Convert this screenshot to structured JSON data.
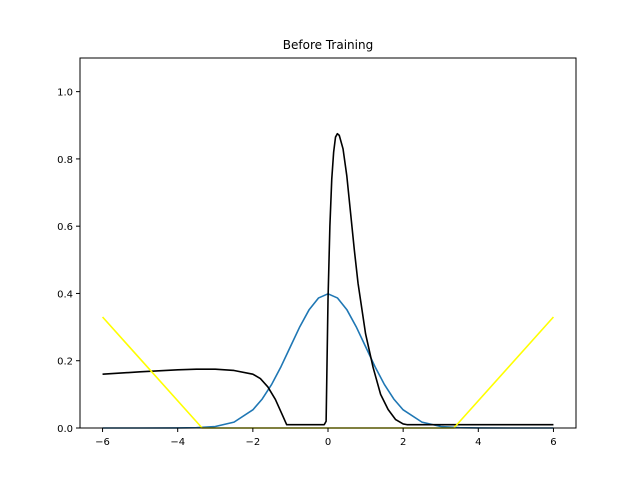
{
  "chart_data": {
    "type": "line",
    "title": "Before Training",
    "xlabel": "",
    "ylabel": "",
    "xlim": [
      -6.6,
      6.6
    ],
    "ylim": [
      0,
      1.1
    ],
    "xticks": [
      -6,
      -4,
      -2,
      0,
      2,
      4,
      6
    ],
    "xtick_labels": [
      "−6",
      "−4",
      "−2",
      "0",
      "2",
      "4",
      "6"
    ],
    "yticks": [
      0.0,
      0.2,
      0.4,
      0.6,
      0.8,
      1.0
    ],
    "ytick_labels": [
      "0.0",
      "0.2",
      "0.4",
      "0.6",
      "0.8",
      "1.0"
    ],
    "grid": false,
    "legend": "none",
    "series": [
      {
        "color": "#1f77b4",
        "x": [
          -6,
          -5,
          -4,
          -3.5,
          -3,
          -2.5,
          -2,
          -1.75,
          -1.5,
          -1.25,
          -1,
          -0.75,
          -0.5,
          -0.25,
          0,
          0.25,
          0.5,
          0.75,
          1,
          1.25,
          1.5,
          1.75,
          2,
          2.5,
          3,
          3.5,
          4,
          5,
          6
        ],
        "y": [
          0,
          0,
          0.0001,
          0.0009,
          0.0044,
          0.0175,
          0.054,
          0.0863,
          0.1295,
          0.1826,
          0.242,
          0.3011,
          0.3521,
          0.3867,
          0.3989,
          0.3867,
          0.3521,
          0.3011,
          0.242,
          0.1826,
          0.1295,
          0.0863,
          0.054,
          0.0175,
          0.0044,
          0.0009,
          0.0001,
          0,
          0
        ]
      },
      {
        "color": "#000000",
        "x": [
          -6,
          -5,
          -4,
          -3.5,
          -3,
          -2.5,
          -2,
          -1.8,
          -1.6,
          -1.4,
          -1.2,
          -1.1,
          -0.1,
          -0.05,
          0,
          0.05,
          0.1,
          0.15,
          0.2,
          0.25,
          0.3,
          0.4,
          0.5,
          0.6,
          0.7,
          0.8,
          1.0,
          1.2,
          1.4,
          1.6,
          1.8,
          2.0,
          2.1,
          3,
          4,
          5,
          6
        ],
        "y": [
          0.16,
          0.167,
          0.173,
          0.175,
          0.175,
          0.171,
          0.16,
          0.147,
          0.122,
          0.085,
          0.035,
          0.01,
          0.01,
          0.02,
          0.38,
          0.6,
          0.74,
          0.82,
          0.865,
          0.875,
          0.87,
          0.83,
          0.75,
          0.64,
          0.53,
          0.43,
          0.28,
          0.18,
          0.1,
          0.055,
          0.025,
          0.012,
          0.01,
          0.01,
          0.01,
          0.01,
          0.01
        ]
      },
      {
        "color": "#ffff00",
        "x": [
          -6,
          -3.35,
          3.35,
          6
        ],
        "y": [
          0.33,
          0,
          0,
          0.33
        ]
      }
    ]
  }
}
